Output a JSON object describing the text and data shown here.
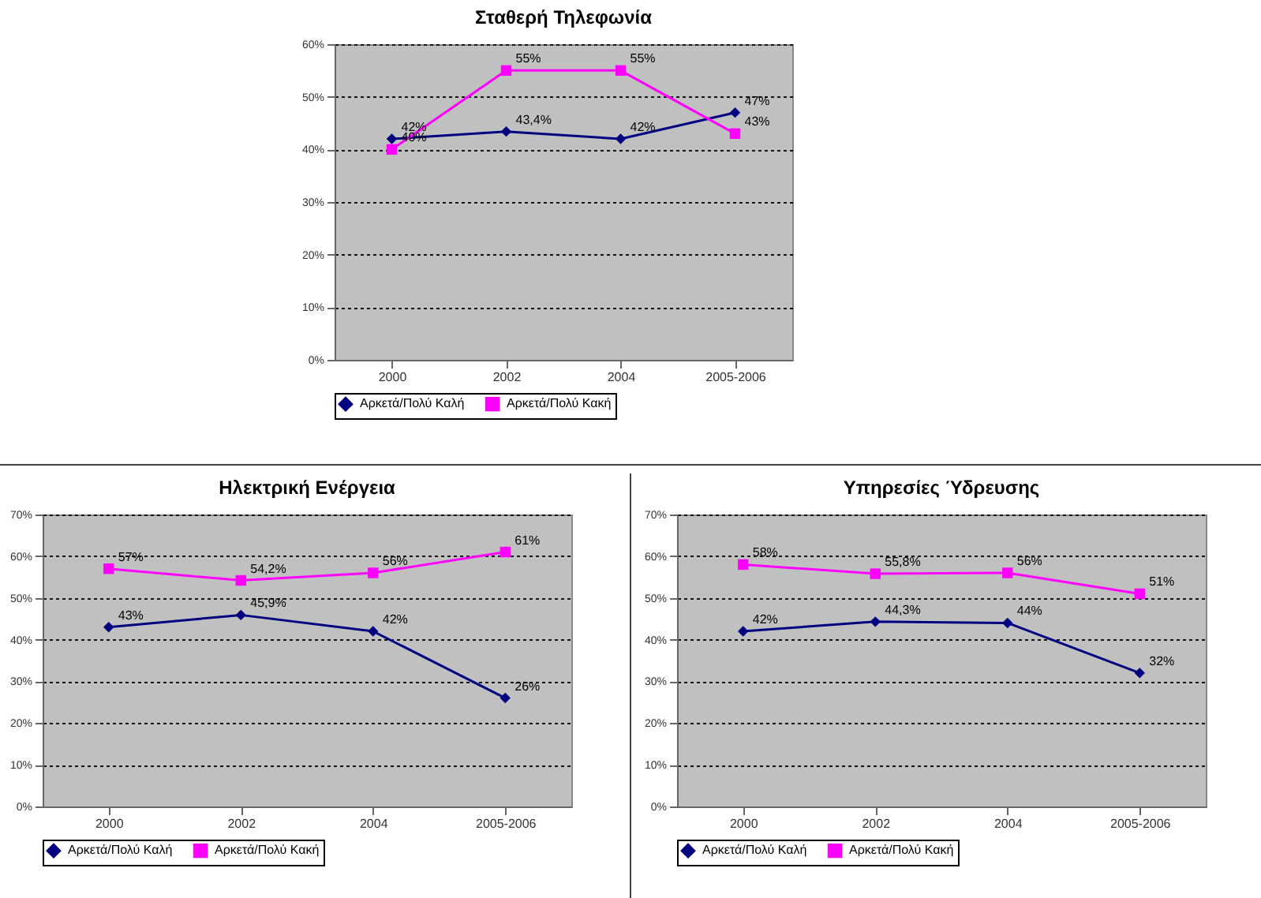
{
  "chart_data": [
    {
      "type": "line",
      "title": "Σταθερή Τηλεφωνία",
      "categories": [
        "2000",
        "2002",
        "2004",
        "2005-2006"
      ],
      "series": [
        {
          "name": "Αρκετά/Πολύ Καλή",
          "color": "#000080",
          "marker": "diamond",
          "values": [
            42,
            43.4,
            42,
            47
          ],
          "value_labels": [
            "42%",
            "43,4%",
            "42%",
            "47%"
          ]
        },
        {
          "name": "Αρκετά/Πολύ Κακή",
          "color": "#ff00ff",
          "marker": "square",
          "values": [
            40,
            55,
            55,
            43
          ],
          "value_labels": [
            "40%",
            "55%",
            "55%",
            "43%"
          ]
        }
      ],
      "ylim": [
        0,
        60
      ],
      "yticks": [
        {
          "value": 0,
          "label": "0%"
        },
        {
          "value": 10,
          "label": "10%"
        },
        {
          "value": 20,
          "label": "20%"
        },
        {
          "value": 30,
          "label": "30%"
        },
        {
          "value": 40,
          "label": "40%"
        },
        {
          "value": 50,
          "label": "50%"
        },
        {
          "value": 60,
          "label": "60%"
        }
      ],
      "grid": "y",
      "legend": "bottom"
    },
    {
      "type": "line",
      "title": "Ηλεκτρική Ενέργεια",
      "categories": [
        "2000",
        "2002",
        "2004",
        "2005-2006"
      ],
      "series": [
        {
          "name": "Αρκετά/Πολύ Καλή",
          "color": "#000080",
          "marker": "diamond",
          "values": [
            43,
            45.9,
            42,
            26
          ],
          "value_labels": [
            "43%",
            "45,9%",
            "42%",
            "26%"
          ]
        },
        {
          "name": "Αρκετά/Πολύ Κακή",
          "color": "#ff00ff",
          "marker": "square",
          "values": [
            57,
            54.2,
            56,
            61
          ],
          "value_labels": [
            "57%",
            "54,2%",
            "56%",
            "61%"
          ]
        }
      ],
      "ylim": [
        0,
        70
      ],
      "yticks": [
        {
          "value": 0,
          "label": "0%"
        },
        {
          "value": 10,
          "label": "10%"
        },
        {
          "value": 20,
          "label": "20%"
        },
        {
          "value": 30,
          "label": "30%"
        },
        {
          "value": 40,
          "label": "40%"
        },
        {
          "value": 50,
          "label": "50%"
        },
        {
          "value": 60,
          "label": "60%"
        },
        {
          "value": 70,
          "label": "70%"
        }
      ],
      "grid": "y",
      "legend": "bottom"
    },
    {
      "type": "line",
      "title": "Υπηρεσίες Ύδρευσης",
      "categories": [
        "2000",
        "2002",
        "2004",
        "2005-2006"
      ],
      "series": [
        {
          "name": "Αρκετά/Πολύ Καλή",
          "color": "#000080",
          "marker": "diamond",
          "values": [
            42,
            44.3,
            44,
            32
          ],
          "value_labels": [
            "42%",
            "44,3%",
            "44%",
            "32%"
          ]
        },
        {
          "name": "Αρκετά/Πολύ Κακή",
          "color": "#ff00ff",
          "marker": "square",
          "values": [
            58,
            55.8,
            56,
            51
          ],
          "value_labels": [
            "58%",
            "55,8%",
            "56%",
            "51%"
          ]
        }
      ],
      "ylim": [
        0,
        70
      ],
      "yticks": [
        {
          "value": 0,
          "label": "0%"
        },
        {
          "value": 10,
          "label": "10%"
        },
        {
          "value": 20,
          "label": "20%"
        },
        {
          "value": 30,
          "label": "30%"
        },
        {
          "value": 40,
          "label": "40%"
        },
        {
          "value": 50,
          "label": "50%"
        },
        {
          "value": 60,
          "label": "60%"
        },
        {
          "value": 70,
          "label": "70%"
        }
      ],
      "grid": "y",
      "legend": "bottom"
    }
  ]
}
